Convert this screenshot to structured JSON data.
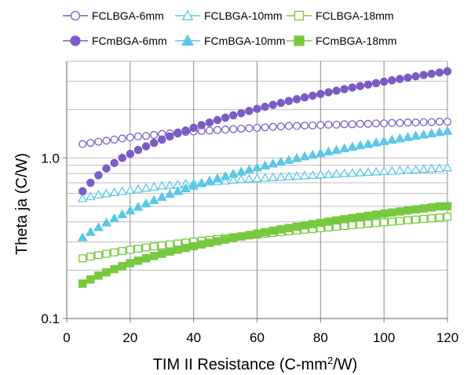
{
  "chart_data": {
    "type": "scatter",
    "xlabel": "TIM II Resistance (C-mm",
    "xlabel_sup": "2",
    "xlabel_tail": "/W)",
    "ylabel": "Theta ja (C/W)",
    "x_scale": "linear",
    "y_scale": "log",
    "xlim": [
      0,
      120
    ],
    "ylim": [
      0.1,
      4
    ],
    "x_ticks": [
      0,
      20,
      40,
      60,
      80,
      100,
      120
    ],
    "x_tick_labels": [
      "0",
      "20",
      "40",
      "60",
      "80",
      "100",
      "120"
    ],
    "y_ticks": [
      0.1,
      1.0
    ],
    "y_tick_labels": [
      "0.1",
      "1.0"
    ],
    "grid": true,
    "legend_position": "top",
    "x": [
      5,
      7.5,
      10,
      12.5,
      15,
      17.5,
      20,
      22.5,
      25,
      27.5,
      30,
      32.5,
      35,
      37.5,
      40,
      42.5,
      45,
      47.5,
      50,
      52.5,
      55,
      57.5,
      60,
      62.5,
      65,
      67.5,
      70,
      72.5,
      75,
      77.5,
      80,
      82.5,
      85,
      87.5,
      90,
      92.5,
      95,
      97.5,
      100,
      102.5,
      105,
      107.5,
      110,
      112.5,
      115,
      117.5,
      120
    ],
    "series": [
      {
        "name": "FCLBGA-6mm",
        "color": "#7B5CC6",
        "marker": "circle",
        "filled": false,
        "values": [
          1.22,
          1.24,
          1.26,
          1.28,
          1.3,
          1.32,
          1.34,
          1.36,
          1.37,
          1.39,
          1.41,
          1.42,
          1.44,
          1.45,
          1.46,
          1.47,
          1.48,
          1.49,
          1.5,
          1.51,
          1.52,
          1.53,
          1.54,
          1.55,
          1.56,
          1.57,
          1.58,
          1.58,
          1.59,
          1.59,
          1.6,
          1.61,
          1.61,
          1.62,
          1.62,
          1.63,
          1.63,
          1.64,
          1.64,
          1.65,
          1.65,
          1.66,
          1.66,
          1.67,
          1.67,
          1.68,
          1.68
        ]
      },
      {
        "name": "FCLBGA-10mm",
        "color": "#5BC8E6",
        "marker": "triangle",
        "filled": false,
        "values": [
          0.56,
          0.575,
          0.59,
          0.6,
          0.61,
          0.62,
          0.63,
          0.64,
          0.65,
          0.66,
          0.67,
          0.675,
          0.68,
          0.69,
          0.695,
          0.7,
          0.71,
          0.715,
          0.72,
          0.73,
          0.735,
          0.74,
          0.745,
          0.75,
          0.755,
          0.76,
          0.765,
          0.77,
          0.775,
          0.78,
          0.785,
          0.79,
          0.795,
          0.8,
          0.805,
          0.81,
          0.815,
          0.82,
          0.825,
          0.83,
          0.835,
          0.84,
          0.845,
          0.85,
          0.855,
          0.86,
          0.87
        ]
      },
      {
        "name": "FCLBGA-18mm",
        "color": "#77C93F",
        "marker": "square",
        "filled": false,
        "values": [
          0.237,
          0.243,
          0.248,
          0.253,
          0.258,
          0.263,
          0.268,
          0.272,
          0.277,
          0.281,
          0.285,
          0.289,
          0.293,
          0.297,
          0.301,
          0.305,
          0.309,
          0.313,
          0.317,
          0.321,
          0.325,
          0.329,
          0.333,
          0.337,
          0.341,
          0.345,
          0.349,
          0.353,
          0.357,
          0.361,
          0.365,
          0.369,
          0.373,
          0.377,
          0.381,
          0.385,
          0.389,
          0.393,
          0.397,
          0.401,
          0.405,
          0.409,
          0.413,
          0.417,
          0.421,
          0.425,
          0.43
        ]
      },
      {
        "name": "FCmBGA-6mm",
        "color": "#7B5CC6",
        "marker": "circle",
        "filled": true,
        "values": [
          0.62,
          0.7,
          0.78,
          0.86,
          0.93,
          1.0,
          1.06,
          1.12,
          1.18,
          1.24,
          1.3,
          1.36,
          1.42,
          1.48,
          1.54,
          1.6,
          1.66,
          1.72,
          1.78,
          1.84,
          1.9,
          1.96,
          2.02,
          2.08,
          2.14,
          2.2,
          2.26,
          2.32,
          2.38,
          2.44,
          2.5,
          2.56,
          2.62,
          2.68,
          2.74,
          2.8,
          2.86,
          2.92,
          2.98,
          3.04,
          3.1,
          3.16,
          3.22,
          3.28,
          3.34,
          3.4,
          3.46
        ]
      },
      {
        "name": "FCmBGA-10mm",
        "color": "#5BC8E6",
        "marker": "triangle",
        "filled": true,
        "values": [
          0.32,
          0.345,
          0.37,
          0.395,
          0.42,
          0.445,
          0.47,
          0.495,
          0.52,
          0.545,
          0.57,
          0.595,
          0.62,
          0.645,
          0.67,
          0.695,
          0.72,
          0.745,
          0.77,
          0.795,
          0.82,
          0.845,
          0.87,
          0.895,
          0.92,
          0.945,
          0.97,
          0.995,
          1.02,
          1.045,
          1.07,
          1.095,
          1.12,
          1.145,
          1.17,
          1.195,
          1.22,
          1.245,
          1.27,
          1.295,
          1.32,
          1.345,
          1.37,
          1.395,
          1.42,
          1.445,
          1.47
        ]
      },
      {
        "name": "FCmBGA-18mm",
        "color": "#77C93F",
        "marker": "square",
        "filled": true,
        "values": [
          0.165,
          0.175,
          0.185,
          0.194,
          0.203,
          0.212,
          0.221,
          0.229,
          0.237,
          0.245,
          0.253,
          0.261,
          0.268,
          0.275,
          0.282,
          0.289,
          0.296,
          0.303,
          0.31,
          0.317,
          0.324,
          0.331,
          0.338,
          0.345,
          0.352,
          0.359,
          0.366,
          0.373,
          0.38,
          0.387,
          0.394,
          0.401,
          0.408,
          0.415,
          0.422,
          0.429,
          0.436,
          0.443,
          0.45,
          0.457,
          0.464,
          0.471,
          0.478,
          0.485,
          0.492,
          0.499,
          0.5
        ]
      }
    ]
  }
}
